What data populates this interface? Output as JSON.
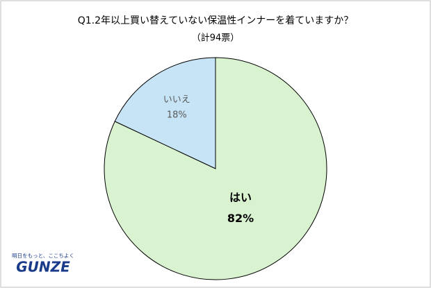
{
  "chart_data": {
    "type": "pie",
    "title": "Q1.2年以上買い替えていない保温性インナーを着ていますか？",
    "subtitle": "（計94票）",
    "categories": [
      "はい",
      "いいえ"
    ],
    "values": [
      82,
      18
    ],
    "value_labels": [
      "82%",
      "18%"
    ],
    "colors": [
      "#d9f2d0",
      "#c6e4f6"
    ],
    "label_colors": [
      "#000000",
      "#595959"
    ]
  },
  "logo": {
    "tagline": "明日をもっと、ここちよく",
    "name": "GUNZE"
  }
}
